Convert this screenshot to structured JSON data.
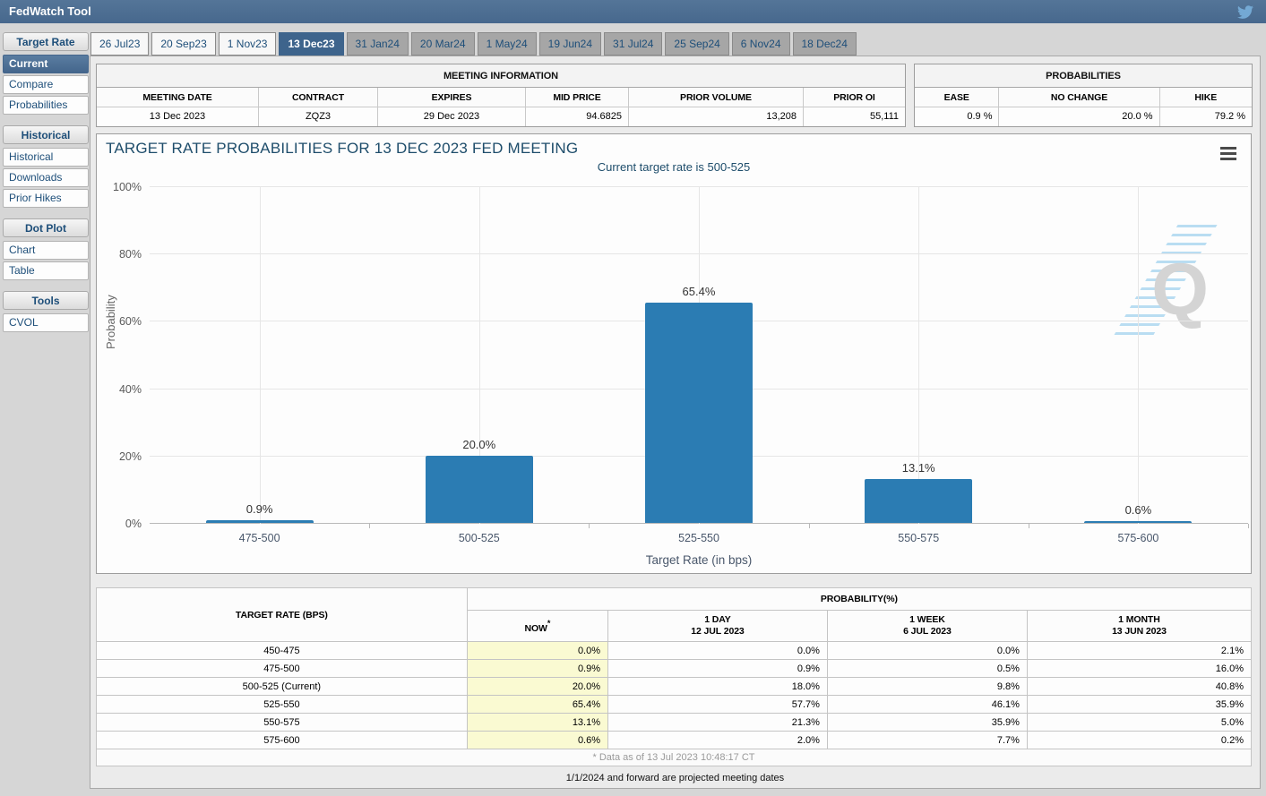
{
  "app": {
    "title": "FedWatch Tool"
  },
  "header": {
    "icons": [
      "twitter-icon"
    ]
  },
  "sidebar": {
    "sections": [
      {
        "header": "Target Rate",
        "items": [
          {
            "label": "Current",
            "selected": true
          },
          {
            "label": "Compare",
            "selected": false
          },
          {
            "label": "Probabilities",
            "selected": false
          }
        ]
      },
      {
        "header": "Historical",
        "items": [
          {
            "label": "Historical",
            "selected": false
          },
          {
            "label": "Downloads",
            "selected": false
          },
          {
            "label": "Prior Hikes",
            "selected": false
          }
        ]
      },
      {
        "header": "Dot Plot",
        "items": [
          {
            "label": "Chart",
            "selected": false
          },
          {
            "label": "Table",
            "selected": false
          }
        ]
      },
      {
        "header": "Tools",
        "items": [
          {
            "label": "CVOL",
            "selected": false
          }
        ]
      }
    ]
  },
  "tabs": [
    {
      "label": "26 Jul23",
      "state": "past"
    },
    {
      "label": "20 Sep23",
      "state": "past"
    },
    {
      "label": "1 Nov23",
      "state": "past"
    },
    {
      "label": "13 Dec23",
      "state": "selected"
    },
    {
      "label": "31 Jan24",
      "state": "future"
    },
    {
      "label": "20 Mar24",
      "state": "future"
    },
    {
      "label": "1 May24",
      "state": "future"
    },
    {
      "label": "19 Jun24",
      "state": "future"
    },
    {
      "label": "31 Jul24",
      "state": "future"
    },
    {
      "label": "25 Sep24",
      "state": "future"
    },
    {
      "label": "6 Nov24",
      "state": "future"
    },
    {
      "label": "18 Dec24",
      "state": "future"
    }
  ],
  "meeting_information": {
    "title": "MEETING INFORMATION",
    "columns": [
      "MEETING DATE",
      "CONTRACT",
      "EXPIRES",
      "MID PRICE",
      "PRIOR VOLUME",
      "PRIOR OI"
    ],
    "values": [
      "13 Dec 2023",
      "ZQZ3",
      "29 Dec 2023",
      "94.6825",
      "13,208",
      "55,111"
    ]
  },
  "probabilities_panel": {
    "title": "PROBABILITIES",
    "columns": [
      "EASE",
      "NO CHANGE",
      "HIKE"
    ],
    "values": [
      "0.9 %",
      "20.0 %",
      "79.2 %"
    ]
  },
  "chart_data": {
    "type": "bar",
    "title": "TARGET RATE PROBABILITIES FOR 13 DEC 2023 FED MEETING",
    "subtitle": "Current target rate is 500-525",
    "categories": [
      "475-500",
      "500-525",
      "525-550",
      "550-575",
      "575-600"
    ],
    "values": [
      0.9,
      20.0,
      65.4,
      13.1,
      0.6
    ],
    "data_labels": [
      "0.9%",
      "20.0%",
      "65.4%",
      "13.1%",
      "0.6%"
    ],
    "xlabel": "Target Rate (in bps)",
    "ylabel": "Probability",
    "ylim": [
      0,
      100
    ],
    "yticks": [
      0,
      20,
      40,
      60,
      80,
      100
    ],
    "ytick_labels": [
      "0%",
      "20%",
      "40%",
      "60%",
      "80%",
      "100%"
    ],
    "bar_color": "#2b7cb3",
    "grid": true,
    "legend": "none",
    "watermark_letter": "Q"
  },
  "probability_table": {
    "corner_header": "TARGET RATE (BPS)",
    "group_header": "PROBABILITY(%)",
    "col_headers": [
      {
        "line1": "NOW",
        "asterisk": true,
        "line2": ""
      },
      {
        "line1": "1 DAY",
        "line2": "12 JUL 2023"
      },
      {
        "line1": "1 WEEK",
        "line2": "6 JUL 2023"
      },
      {
        "line1": "1 MONTH",
        "line2": "13 JUN 2023"
      }
    ],
    "rows": [
      {
        "rate": "450-475",
        "now": "0.0%",
        "day": "0.0%",
        "week": "0.0%",
        "month": "2.1%"
      },
      {
        "rate": "475-500",
        "now": "0.9%",
        "day": "0.9%",
        "week": "0.5%",
        "month": "16.0%"
      },
      {
        "rate": "500-525 (Current)",
        "now": "20.0%",
        "day": "18.0%",
        "week": "9.8%",
        "month": "40.8%"
      },
      {
        "rate": "525-550",
        "now": "65.4%",
        "day": "57.7%",
        "week": "46.1%",
        "month": "35.9%"
      },
      {
        "rate": "550-575",
        "now": "13.1%",
        "day": "21.3%",
        "week": "35.9%",
        "month": "5.0%"
      },
      {
        "rate": "575-600",
        "now": "0.6%",
        "day": "2.0%",
        "week": "7.7%",
        "month": "0.2%"
      }
    ],
    "footnote": "* Data as of 13 Jul 2023 10:48:17 CT"
  },
  "footer_note": "1/1/2024 and forward are projected meeting dates",
  "colors": {
    "header_bg": "#4b6d92",
    "selected_tab_bg": "#3e648c",
    "bar": "#2b7cb3",
    "now_column_bg": "#fafad2",
    "chart_title": "#1e4d6b",
    "link_navy": "#1d4e79"
  }
}
